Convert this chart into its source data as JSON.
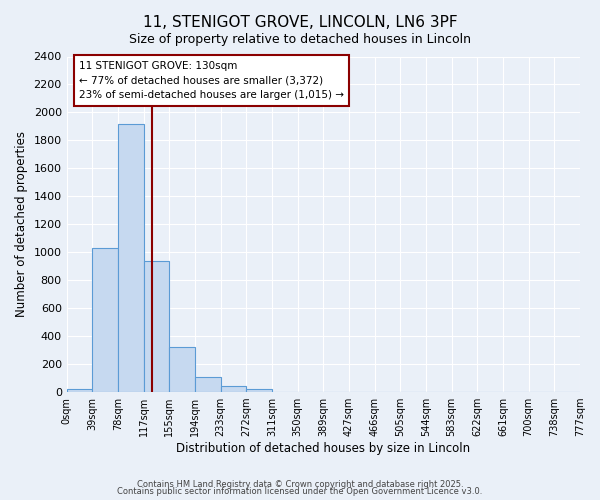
{
  "title": "11, STENIGOT GROVE, LINCOLN, LN6 3PF",
  "subtitle": "Size of property relative to detached houses in Lincoln",
  "xlabel": "Distribution of detached houses by size in Lincoln",
  "ylabel": "Number of detached properties",
  "bar_values": [
    20,
    1030,
    1920,
    940,
    320,
    105,
    45,
    20,
    0,
    0,
    0,
    0,
    0,
    0,
    0,
    0,
    0,
    0,
    0,
    0
  ],
  "bin_labels": [
    "0sqm",
    "39sqm",
    "78sqm",
    "117sqm",
    "155sqm",
    "194sqm",
    "233sqm",
    "272sqm",
    "311sqm",
    "350sqm",
    "389sqm",
    "427sqm",
    "466sqm",
    "505sqm",
    "544sqm",
    "583sqm",
    "622sqm",
    "661sqm",
    "700sqm",
    "738sqm",
    "777sqm"
  ],
  "bar_color": "#c6d9f0",
  "bar_edge_color": "#5b9bd5",
  "vline_color": "#8b0000",
  "annotation_title": "11 STENIGOT GROVE: 130sqm",
  "annotation_line1": "← 77% of detached houses are smaller (3,372)",
  "annotation_line2": "23% of semi-detached houses are larger (1,015) →",
  "annotation_box_color": "#ffffff",
  "annotation_box_edge": "#8b0000",
  "ylim": [
    0,
    2400
  ],
  "yticks": [
    0,
    200,
    400,
    600,
    800,
    1000,
    1200,
    1400,
    1600,
    1800,
    2000,
    2200,
    2400
  ],
  "bg_color": "#eaf0f8",
  "grid_color": "#ffffff",
  "footer_line1": "Contains HM Land Registry data © Crown copyright and database right 2025.",
  "footer_line2": "Contains public sector information licensed under the Open Government Licence v3.0.",
  "figsize": [
    6.0,
    5.0
  ],
  "dpi": 100,
  "vline_pos": 3.333
}
